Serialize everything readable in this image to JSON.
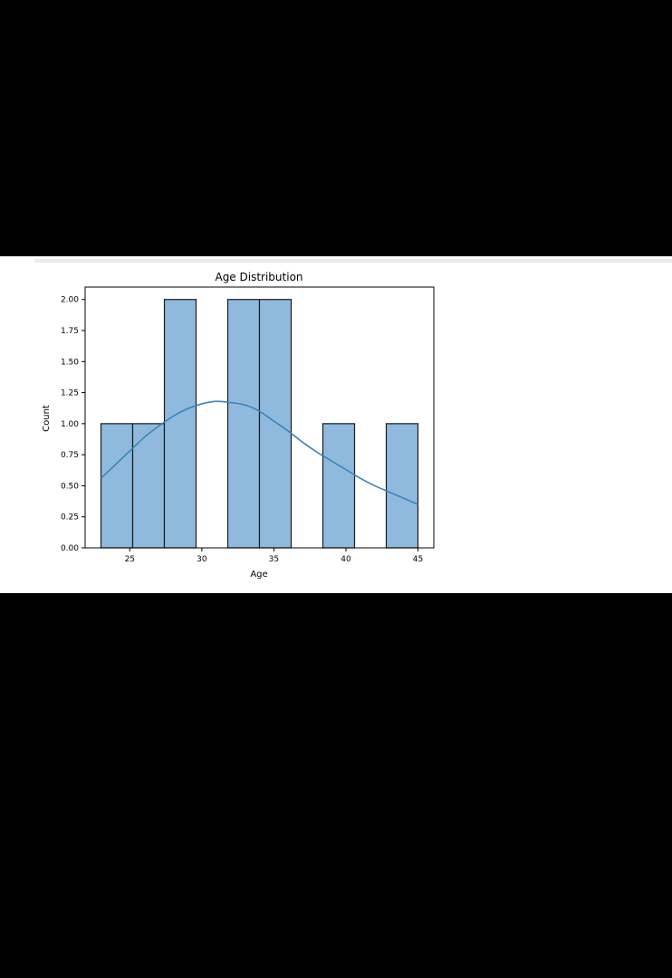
{
  "chart_data": {
    "type": "bar",
    "subtype": "histogram-with-kde",
    "title": "Age Distribution",
    "xlabel": "Age",
    "ylabel": "Count",
    "bins": [
      {
        "start": 23.0,
        "end": 25.2,
        "count": 1
      },
      {
        "start": 25.2,
        "end": 27.4,
        "count": 1
      },
      {
        "start": 27.4,
        "end": 29.6,
        "count": 2
      },
      {
        "start": 29.6,
        "end": 31.8,
        "count": 0
      },
      {
        "start": 31.8,
        "end": 34.0,
        "count": 2
      },
      {
        "start": 34.0,
        "end": 36.2,
        "count": 2
      },
      {
        "start": 36.2,
        "end": 38.4,
        "count": 0
      },
      {
        "start": 38.4,
        "end": 40.6,
        "count": 1
      },
      {
        "start": 40.6,
        "end": 42.8,
        "count": 0
      },
      {
        "start": 42.8,
        "end": 45.0,
        "count": 1
      }
    ],
    "kde": {
      "x": [
        23,
        24,
        25,
        26,
        27,
        28,
        29,
        30,
        31,
        32,
        33,
        34,
        35,
        36,
        37,
        38,
        39,
        40,
        41,
        42,
        43,
        44,
        45
      ],
      "y": [
        0.56,
        0.67,
        0.78,
        0.89,
        0.98,
        1.06,
        1.12,
        1.16,
        1.18,
        1.17,
        1.15,
        1.1,
        1.02,
        0.94,
        0.85,
        0.77,
        0.7,
        0.63,
        0.56,
        0.5,
        0.45,
        0.4,
        0.35
      ]
    },
    "xlim": [
      21.9,
      46.1
    ],
    "ylim": [
      0,
      2.1
    ],
    "xticks": [
      "25",
      "30",
      "35",
      "40",
      "45"
    ],
    "yticks": [
      "0.00",
      "0.25",
      "0.50",
      "0.75",
      "1.00",
      "1.25",
      "1.50",
      "1.75",
      "2.00"
    ],
    "grid": false,
    "colors": {
      "bar_fill": "#8fbade",
      "bar_edge": "#1a1a1a",
      "kde_line": "#3b84b8",
      "axes": "#000000"
    }
  }
}
